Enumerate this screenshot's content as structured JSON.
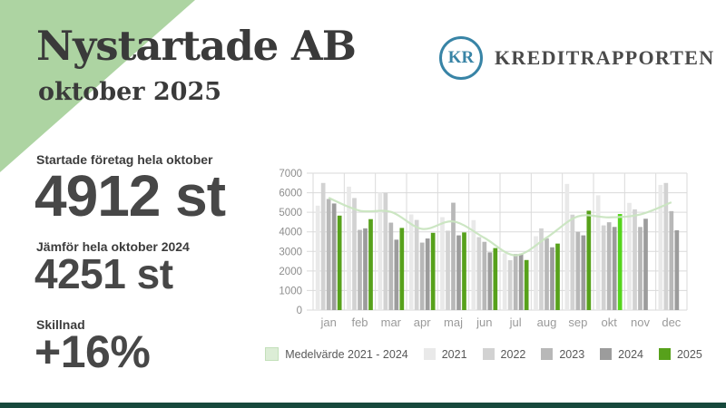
{
  "page": {
    "background": "#ffffff",
    "corner_triangle_color": "#add4a2",
    "footer_bar_color": "#17493c"
  },
  "header": {
    "title": "Nystartade AB",
    "subtitle": "oktober 2025"
  },
  "logo": {
    "monogram": "KR",
    "text": "KREDITRAPPORTEN",
    "accent_color": "#3884a6"
  },
  "stats": [
    {
      "label": "Startade företag hela oktober",
      "value": "4912 st"
    },
    {
      "label": "Jämför hela oktober 2024",
      "value": "4251 st"
    },
    {
      "label": "Skillnad",
      "value": "+16%"
    }
  ],
  "chart_data": {
    "type": "bar",
    "title": "",
    "xlabel": "",
    "ylabel": "",
    "ylim": [
      0,
      7000
    ],
    "ytick_step": 1000,
    "grid": true,
    "legend_position": "bottom",
    "categories": [
      "jan",
      "feb",
      "mar",
      "apr",
      "maj",
      "jun",
      "jul",
      "aug",
      "sep",
      "okt",
      "nov",
      "dec"
    ],
    "series": [
      {
        "name": "2021",
        "color": "#e9e9e9",
        "values": [
          5340,
          6310,
          6000,
          4890,
          4750,
          4600,
          2900,
          3780,
          6450,
          5870,
          5480,
          6400
        ]
      },
      {
        "name": "2022",
        "color": "#d2d2d2",
        "values": [
          6500,
          5730,
          6000,
          4610,
          4060,
          3730,
          2550,
          4180,
          4880,
          4330,
          5150,
          6500
        ]
      },
      {
        "name": "2023",
        "color": "#b8b8b8",
        "values": [
          5680,
          4100,
          4470,
          3450,
          5490,
          3490,
          2870,
          3670,
          4000,
          4490,
          4250,
          5060
        ]
      },
      {
        "name": "2024",
        "color": "#9c9c9c",
        "values": [
          5450,
          4180,
          3600,
          3660,
          3820,
          2950,
          2880,
          3210,
          3820,
          4251,
          4670,
          4080
        ]
      },
      {
        "name": "2025",
        "color": "#57a11b",
        "values": [
          4830,
          4650,
          4200,
          3950,
          3970,
          3170,
          2560,
          3400,
          5080,
          4912,
          null,
          null
        ],
        "highlight": {
          "index": 9,
          "color": "#55d41c"
        }
      }
    ],
    "line_series": {
      "name": "Medelvärde 2021 - 2024",
      "color": "#c9e5c0",
      "legend_fill": "#dcedd6",
      "legend_border": "#c3e0ba",
      "values": [
        5740,
        5080,
        5020,
        4150,
        4530,
        3690,
        2800,
        3710,
        4790,
        4740,
        4890,
        5510
      ]
    },
    "axis_text_color": "#8d8d8d",
    "month_text_color": "#9a9a9a",
    "gridline_color": "#dadada"
  }
}
